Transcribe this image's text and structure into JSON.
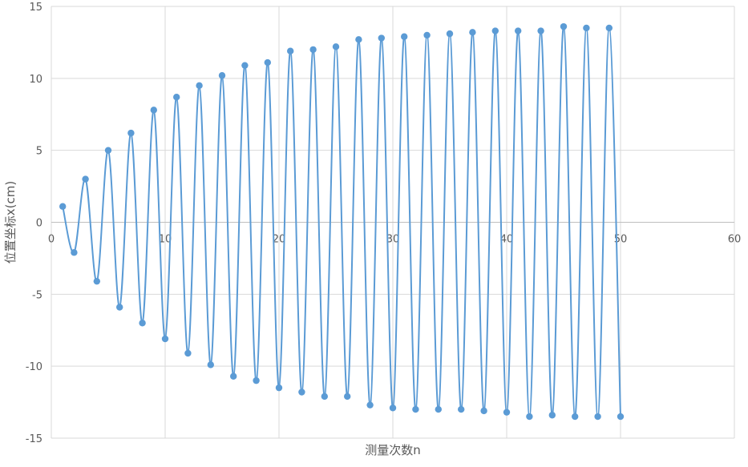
{
  "chart_data": {
    "type": "scatter",
    "title": "",
    "xlabel": "测量次数n",
    "ylabel": "位置坐标x(cm)",
    "xlim": [
      0,
      60
    ],
    "ylim": [
      -15,
      15
    ],
    "xticks": [
      "0",
      "10",
      "20",
      "30",
      "40",
      "50",
      "60"
    ],
    "yticks": [
      "15",
      "10",
      "5",
      "0",
      "-5",
      "-10",
      "-15"
    ],
    "grid": true,
    "smooth_line": true,
    "series_color": "#5b9bd5",
    "series": [
      {
        "x": [
          1,
          2,
          3,
          4,
          5,
          6,
          7,
          8,
          9,
          10,
          11,
          12,
          13,
          14,
          15,
          16,
          17,
          18,
          19,
          20,
          21,
          22,
          23,
          24,
          25,
          26,
          27,
          28,
          29,
          30,
          31,
          32,
          33,
          34,
          35,
          36,
          37,
          38,
          39,
          40,
          41,
          42,
          43,
          44,
          45,
          46,
          47,
          48,
          49,
          50
        ],
        "values": [
          1.1,
          -2.1,
          3.0,
          -4.1,
          5.0,
          -5.9,
          6.2,
          -7.0,
          7.8,
          -8.1,
          8.7,
          -9.1,
          9.5,
          -9.9,
          10.2,
          -10.7,
          10.9,
          -11.0,
          11.1,
          -11.5,
          11.9,
          -11.8,
          12.0,
          -12.1,
          12.2,
          -12.1,
          12.7,
          -12.7,
          12.8,
          -12.9,
          12.9,
          -13.0,
          13.0,
          -13.0,
          13.1,
          -13.0,
          13.2,
          -13.1,
          13.3,
          -13.2,
          13.3,
          -13.5,
          13.3,
          -13.4,
          13.6,
          -13.5,
          13.5,
          -13.5,
          13.5,
          -13.5
        ]
      }
    ]
  }
}
